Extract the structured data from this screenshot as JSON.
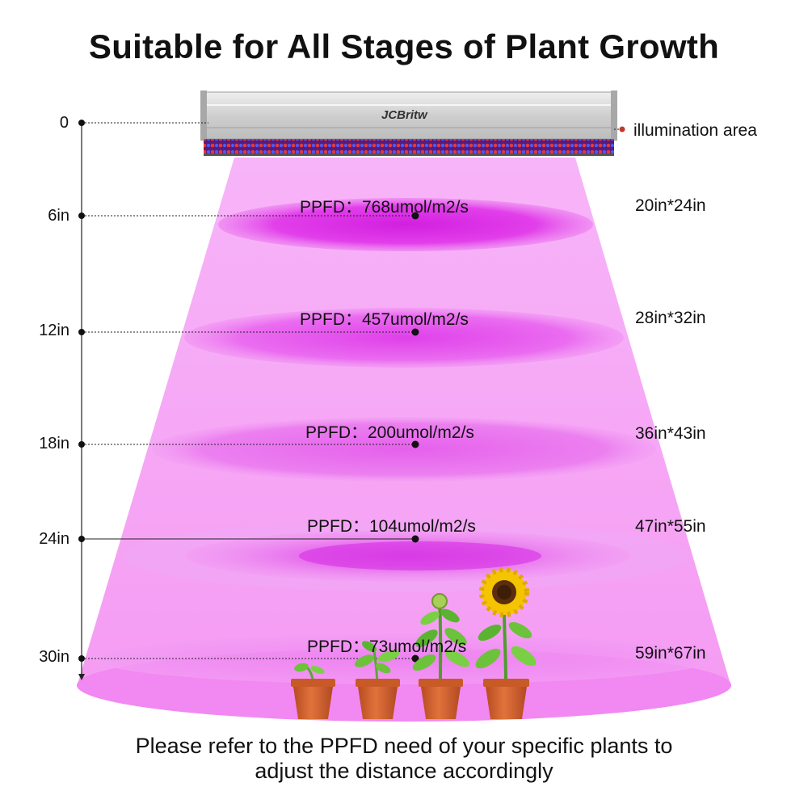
{
  "title": "Suitable for All Stages of Plant Growth",
  "brand": "JCBritw",
  "illumination_label": "illumination area",
  "levels": [
    {
      "distance": "0",
      "ppfd": "",
      "area": ""
    },
    {
      "distance": "6in",
      "ppfd": "PPFD：768umol/m2/s",
      "area": "20in*24in"
    },
    {
      "distance": "12in",
      "ppfd": "PPFD：457umol/m2/s",
      "area": "28in*32in"
    },
    {
      "distance": "18in",
      "ppfd": "PPFD：200umol/m2/s",
      "area": "36in*43in"
    },
    {
      "distance": "24in",
      "ppfd": "PPFD：104umol/m2/s",
      "area": "47in*55in"
    },
    {
      "distance": "30in",
      "ppfd": "PPFD：73umol/m2/s",
      "area": "59in*67in"
    }
  ],
  "footer": {
    "line1": "Please refer to the PPFD need of your specific plants to",
    "line2": "adjust the distance accordingly"
  },
  "colors": {
    "beam": "#f6a8f6",
    "hotspot": "#e233e6",
    "housing": "#d7d7d7",
    "pot": "#d4622e",
    "leaf": "#6cc23a",
    "sunflower": "#f5c400"
  }
}
